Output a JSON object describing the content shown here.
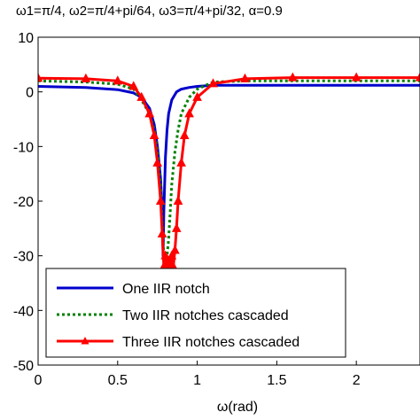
{
  "chart_data": {
    "type": "line",
    "title": "ω1=π/4,  ω2=π/4+pi/64,  ω3=π/4+pi/32,  α=0.9",
    "xlabel": "ω(rad)",
    "ylabel": "",
    "xlim": [
      0,
      2.4
    ],
    "ylim": [
      -50,
      10
    ],
    "x_ticks": [
      "0",
      "0.5",
      "1",
      "1.5",
      "2"
    ],
    "y_ticks": [
      "10",
      "0",
      "-10",
      "-20",
      "-30",
      "-40",
      "-50"
    ],
    "grid": false,
    "legend_position": "bottom-left",
    "series": [
      {
        "name": "One IIR notch",
        "color": "#0000cc",
        "line_style": "solid",
        "marker": "none",
        "x": [
          0,
          0.3,
          0.5,
          0.6,
          0.65,
          0.7,
          0.73,
          0.75,
          0.77,
          0.78,
          0.785,
          0.79,
          0.8,
          0.81,
          0.82,
          0.84,
          0.87,
          0.9,
          0.95,
          1.0,
          1.1,
          1.3,
          2.4
        ],
        "y": [
          1,
          0.8,
          0.4,
          -0.2,
          -1,
          -3,
          -6,
          -10,
          -16,
          -22,
          -30,
          -22,
          -12,
          -7,
          -4,
          -1.5,
          0,
          0.5,
          0.8,
          1,
          1.2,
          1.2,
          1.2
        ]
      },
      {
        "name": "Two IIR notches cascaded",
        "color": "#008000",
        "line_style": "dotted",
        "marker": "none",
        "x": [
          0,
          0.3,
          0.5,
          0.6,
          0.65,
          0.7,
          0.73,
          0.75,
          0.77,
          0.78,
          0.79,
          0.8,
          0.81,
          0.82,
          0.83,
          0.84,
          0.86,
          0.88,
          0.9,
          0.95,
          1.0,
          1.1,
          1.3,
          2.4
        ],
        "y": [
          2,
          1.8,
          1.4,
          0.5,
          -1.5,
          -4,
          -7,
          -11,
          -17,
          -24,
          -30,
          -32,
          -30,
          -27,
          -22,
          -17,
          -11,
          -7,
          -4,
          -1,
          0.5,
          1.8,
          2,
          2
        ]
      },
      {
        "name": "Three IIR notches cascaded",
        "color": "#ff0000",
        "line_style": "solid",
        "marker": "triangle",
        "x": [
          0,
          0.3,
          0.5,
          0.6,
          0.65,
          0.7,
          0.73,
          0.75,
          0.77,
          0.78,
          0.79,
          0.8,
          0.81,
          0.82,
          0.83,
          0.84,
          0.85,
          0.86,
          0.87,
          0.88,
          0.9,
          0.92,
          0.95,
          1.0,
          1.1,
          1.3,
          1.6,
          2.0,
          2.4
        ],
        "y": [
          2.5,
          2.4,
          2,
          1,
          -1,
          -4,
          -8,
          -13,
          -20,
          -26,
          -32,
          -30,
          -32,
          -31,
          -33,
          -30,
          -32,
          -29,
          -25,
          -20,
          -13,
          -8,
          -4,
          -1,
          1.5,
          2.4,
          2.6,
          2.6,
          2.6
        ]
      }
    ]
  }
}
